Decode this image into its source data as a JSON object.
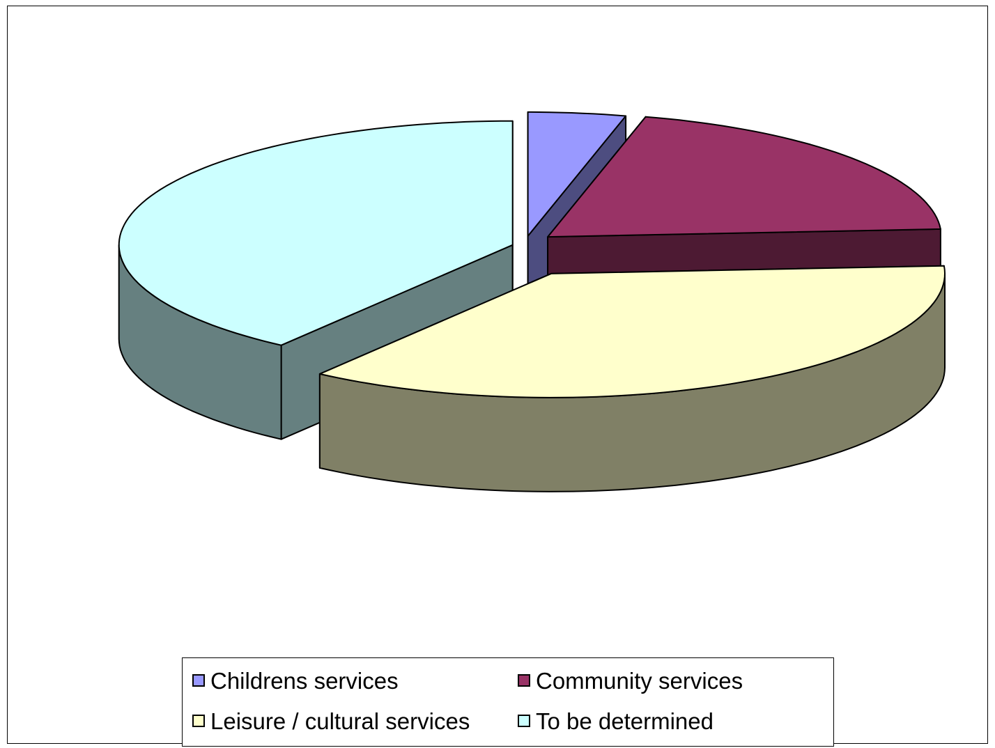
{
  "chart_data": {
    "type": "pie",
    "style": "3d-exploded",
    "title": "",
    "slices": [
      {
        "label": "Childrens services",
        "value": 4,
        "top_color": "#9999ff",
        "side_color": "#4d4d80"
      },
      {
        "label": "Community services",
        "value": 20,
        "top_color": "#993366",
        "side_color": "#4d1a33"
      },
      {
        "label": "Leisure / cultural services",
        "value": 36,
        "top_color": "#ffffcc",
        "side_color": "#808066"
      },
      {
        "label": "To be determined",
        "value": 40,
        "top_color": "#ccffff",
        "side_color": "#668080"
      }
    ],
    "legend": {
      "position": "bottom",
      "entries": [
        "Childrens services",
        "Community services",
        "Leisure / cultural services",
        "To be determined"
      ]
    }
  }
}
